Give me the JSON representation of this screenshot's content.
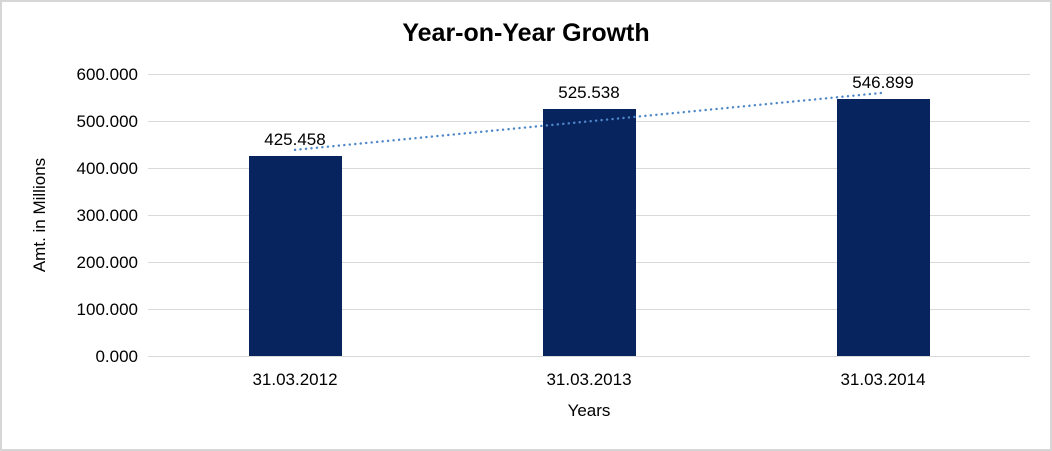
{
  "chart_data": {
    "type": "bar",
    "title": "Year-on-Year Growth",
    "xlabel": "Years",
    "ylabel": "Amt. in Millions",
    "categories": [
      "31.03.2012",
      "31.03.2013",
      "31.03.2014"
    ],
    "values": [
      425.458,
      525.538,
      546.899
    ],
    "data_labels": [
      "425.458",
      "525.538",
      "546.899"
    ],
    "y_ticks": [
      {
        "value": 0,
        "label": "0.000"
      },
      {
        "value": 100,
        "label": "100.000"
      },
      {
        "value": 200,
        "label": "200.000"
      },
      {
        "value": 300,
        "label": "300.000"
      },
      {
        "value": 400,
        "label": "400.000"
      },
      {
        "value": 500,
        "label": "500.000"
      },
      {
        "value": 600,
        "label": "600.000"
      }
    ],
    "ylim": [
      0,
      600
    ],
    "grid": "horizontal",
    "legend": "none",
    "trendline": {
      "type": "linear",
      "style": "dotted"
    },
    "colors": {
      "bar": "#08245f",
      "trendline": "#4e87c9",
      "gridline": "#d9d9d9",
      "text": "#000000",
      "frame_border": "#d6d6d6",
      "background": "#ffffff"
    }
  }
}
